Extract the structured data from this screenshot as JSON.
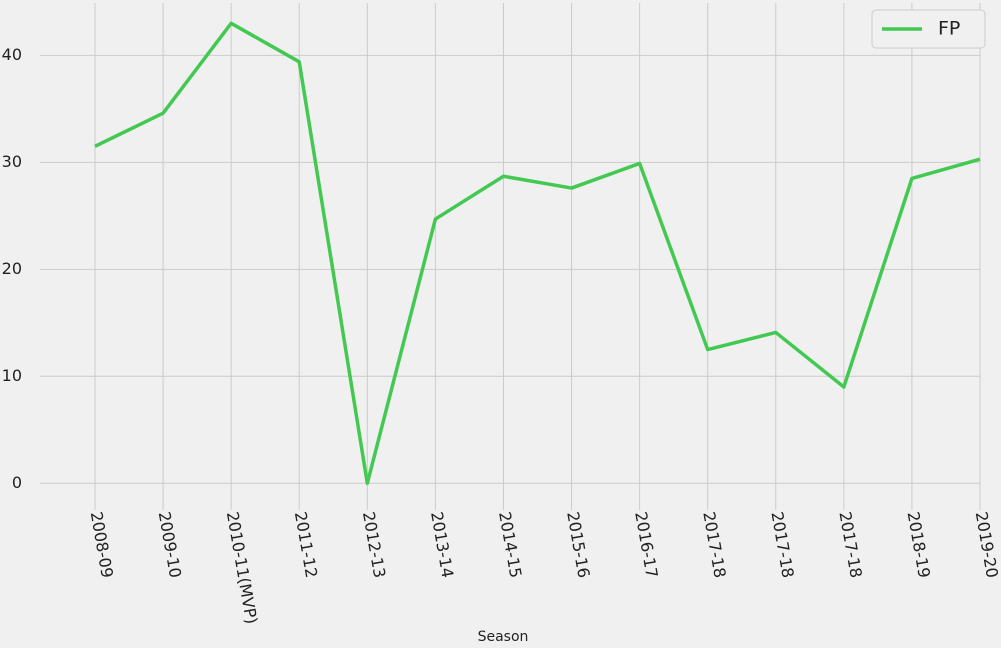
{
  "chart_data": {
    "type": "line",
    "x_label": "Season",
    "categories": [
      "2008-09",
      "2009-10",
      "2010-11(MVP)",
      "2011-12",
      "2012-13",
      "2013-14",
      "2014-15",
      "2015-16",
      "2016-17",
      "2017-18",
      "2017-18",
      "2017-18",
      "2018-19",
      "2019-20"
    ],
    "series": [
      {
        "name": "FP",
        "color": "#43c951",
        "values": [
          31.5,
          34.6,
          43.0,
          39.4,
          0,
          24.7,
          28.7,
          27.6,
          29.9,
          12.5,
          14.1,
          9.0,
          28.5,
          30.3
        ]
      }
    ],
    "ylim": [
      -2.5,
      44.9
    ],
    "yticks": [
      0,
      10,
      20,
      30,
      40
    ],
    "grid": true,
    "legend": "upper right"
  }
}
